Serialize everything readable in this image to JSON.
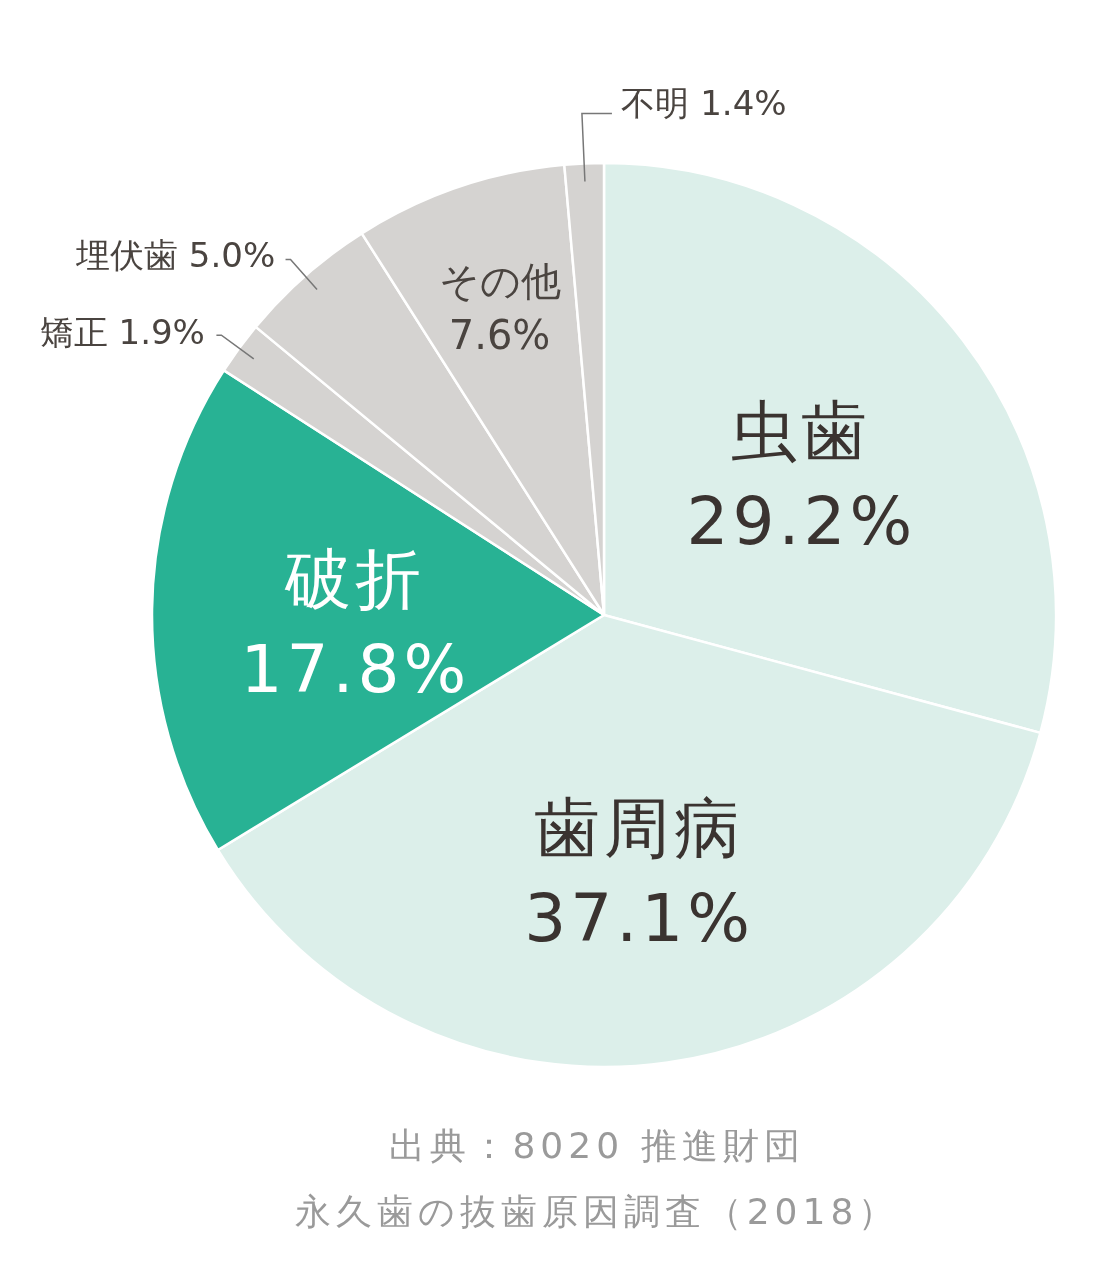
{
  "chart_data": {
    "type": "pie",
    "categories": [
      "虫歯",
      "歯周病",
      "破折",
      "矯正",
      "埋伏歯",
      "その他",
      "不明"
    ],
    "values": [
      29.2,
      37.1,
      17.8,
      1.9,
      5.0,
      7.6,
      1.4
    ],
    "value_labels": [
      "29.2%",
      "37.1%",
      "17.8%",
      "1.9%",
      "5.0%",
      "7.6%",
      "1.4%"
    ],
    "colors": [
      "#dcefea",
      "#dcefea",
      "#28b294",
      "#d5d3d1",
      "#d5d3d1",
      "#d5d3d1",
      "#d5d3d1"
    ],
    "annotations": [
      "出典：8020 推進財団",
      "永久歯の抜歯原因調査（2018）"
    ]
  }
}
